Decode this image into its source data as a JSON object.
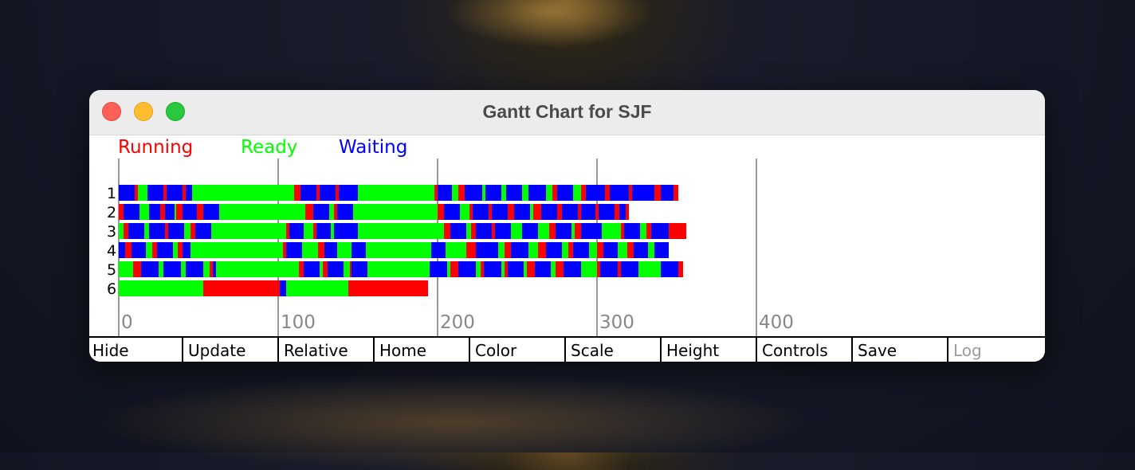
{
  "window": {
    "title": "Gantt Chart for SJF"
  },
  "legend": [
    {
      "label": "Running",
      "color": "#ff0000"
    },
    {
      "label": "Ready",
      "color": "#00ff00"
    },
    {
      "label": "Waiting",
      "color": "#0000ff"
    }
  ],
  "chart_data": {
    "type": "gantt",
    "x_ticks": [
      "0",
      "100",
      "200",
      "300",
      "400"
    ],
    "xlim": [
      0,
      400
    ],
    "rows": [
      {
        "label": "1",
        "segments": [
          [
            "W",
            0,
            10
          ],
          [
            "R",
            10,
            12
          ],
          [
            "G",
            12,
            18
          ],
          [
            "W",
            18,
            28
          ],
          [
            "R",
            28,
            30
          ],
          [
            "W",
            30,
            40
          ],
          [
            "R",
            40,
            42
          ],
          [
            "W",
            42,
            46
          ],
          [
            "G",
            46,
            56
          ],
          [
            "G",
            56,
            110
          ],
          [
            "R",
            110,
            114
          ],
          [
            "W",
            114,
            124
          ],
          [
            "R",
            124,
            126
          ],
          [
            "W",
            126,
            136
          ],
          [
            "R",
            136,
            138
          ],
          [
            "W",
            138,
            150
          ],
          [
            "G",
            150,
            198
          ],
          [
            "R",
            198,
            200
          ],
          [
            "W",
            200,
            209
          ],
          [
            "G",
            209,
            213
          ],
          [
            "R",
            213,
            217
          ],
          [
            "W",
            217,
            228
          ],
          [
            "G",
            228,
            230
          ],
          [
            "W",
            230,
            240
          ],
          [
            "G",
            240,
            243
          ],
          [
            "W",
            243,
            253
          ],
          [
            "G",
            253,
            257
          ],
          [
            "W",
            257,
            268
          ],
          [
            "G",
            268,
            272
          ],
          [
            "R",
            272,
            275
          ],
          [
            "W",
            275,
            285
          ],
          [
            "G",
            285,
            290
          ],
          [
            "R",
            290,
            293
          ],
          [
            "W",
            293,
            305
          ],
          [
            "R",
            305,
            308
          ],
          [
            "W",
            308,
            320
          ],
          [
            "R",
            320,
            322
          ],
          [
            "W",
            322,
            336
          ],
          [
            "R",
            336,
            340
          ],
          [
            "W",
            340,
            348
          ],
          [
            "R",
            348,
            351
          ]
        ]
      },
      {
        "label": "2",
        "segments": [
          [
            "R",
            0,
            3
          ],
          [
            "W",
            3,
            13
          ],
          [
            "G",
            13,
            19
          ],
          [
            "W",
            19,
            26
          ],
          [
            "R",
            26,
            29
          ],
          [
            "W",
            29,
            35
          ],
          [
            "G",
            35,
            36
          ],
          [
            "R",
            36,
            40
          ],
          [
            "W",
            40,
            49
          ],
          [
            "R",
            49,
            53
          ],
          [
            "W",
            53,
            63
          ],
          [
            "G",
            63,
            117
          ],
          [
            "R",
            117,
            122
          ],
          [
            "W",
            122,
            132
          ],
          [
            "G",
            132,
            135
          ],
          [
            "R",
            135,
            137
          ],
          [
            "W",
            137,
            147
          ],
          [
            "G",
            147,
            200
          ],
          [
            "R",
            200,
            204
          ],
          [
            "W",
            204,
            214
          ],
          [
            "G",
            214,
            220
          ],
          [
            "R",
            220,
            222
          ],
          [
            "W",
            222,
            232
          ],
          [
            "R",
            232,
            234
          ],
          [
            "W",
            234,
            244
          ],
          [
            "R",
            244,
            248
          ],
          [
            "W",
            248,
            258
          ],
          [
            "G",
            258,
            260
          ],
          [
            "R",
            260,
            265
          ],
          [
            "W",
            265,
            275
          ],
          [
            "R",
            275,
            278
          ],
          [
            "W",
            278,
            288
          ],
          [
            "R",
            288,
            290
          ],
          [
            "W",
            290,
            299
          ],
          [
            "R",
            299,
            301
          ],
          [
            "W",
            301,
            311
          ],
          [
            "R",
            311,
            314
          ],
          [
            "W",
            314,
            318
          ],
          [
            "R",
            318,
            320
          ]
        ]
      },
      {
        "label": "3",
        "segments": [
          [
            "G",
            0,
            3
          ],
          [
            "R",
            3,
            6
          ],
          [
            "W",
            6,
            16
          ],
          [
            "G",
            16,
            19
          ],
          [
            "W",
            19,
            29
          ],
          [
            "R",
            29,
            31
          ],
          [
            "W",
            31,
            41
          ],
          [
            "G",
            41,
            45
          ],
          [
            "R",
            45,
            48
          ],
          [
            "W",
            48,
            58
          ],
          [
            "G",
            58,
            105
          ],
          [
            "R",
            105,
            107
          ],
          [
            "W",
            107,
            116
          ],
          [
            "G",
            116,
            122
          ],
          [
            "R",
            122,
            124
          ],
          [
            "W",
            124,
            133
          ],
          [
            "G",
            133,
            135
          ],
          [
            "W",
            135,
            150
          ],
          [
            "G",
            150,
            204
          ],
          [
            "R",
            204,
            208
          ],
          [
            "W",
            208,
            218
          ],
          [
            "G",
            218,
            221
          ],
          [
            "R",
            221,
            224
          ],
          [
            "W",
            224,
            234
          ],
          [
            "R",
            234,
            236
          ],
          [
            "W",
            236,
            246
          ],
          [
            "G",
            246,
            253
          ],
          [
            "W",
            253,
            263
          ],
          [
            "G",
            263,
            270
          ],
          [
            "R",
            270,
            274
          ],
          [
            "W",
            274,
            284
          ],
          [
            "G",
            284,
            286
          ],
          [
            "R",
            286,
            290
          ],
          [
            "W",
            290,
            303
          ],
          [
            "G",
            303,
            315
          ],
          [
            "R",
            315,
            317
          ],
          [
            "W",
            317,
            327
          ],
          [
            "G",
            327,
            331
          ],
          [
            "R",
            331,
            334
          ],
          [
            "W",
            334,
            345
          ],
          [
            "R",
            345,
            356
          ]
        ]
      },
      {
        "label": "4",
        "segments": [
          [
            "W",
            0,
            4
          ],
          [
            "R",
            4,
            8
          ],
          [
            "W",
            8,
            17
          ],
          [
            "G",
            17,
            21
          ],
          [
            "R",
            21,
            24
          ],
          [
            "W",
            24,
            34
          ],
          [
            "G",
            34,
            37
          ],
          [
            "R",
            37,
            40
          ],
          [
            "W",
            40,
            45
          ],
          [
            "G",
            45,
            55
          ],
          [
            "G",
            55,
            103
          ],
          [
            "R",
            103,
            105
          ],
          [
            "W",
            105,
            115
          ],
          [
            "G",
            115,
            125
          ],
          [
            "R",
            125,
            129
          ],
          [
            "W",
            129,
            137
          ],
          [
            "G",
            137,
            146
          ],
          [
            "W",
            146,
            155
          ],
          [
            "G",
            155,
            196
          ],
          [
            "W",
            196,
            205
          ],
          [
            "G",
            205,
            218
          ],
          [
            "R",
            218,
            224
          ],
          [
            "W",
            224,
            238
          ],
          [
            "G",
            238,
            242
          ],
          [
            "R",
            242,
            246
          ],
          [
            "W",
            246,
            257
          ],
          [
            "G",
            257,
            263
          ],
          [
            "R",
            263,
            268
          ],
          [
            "W",
            268,
            278
          ],
          [
            "G",
            278,
            282
          ],
          [
            "R",
            282,
            285
          ],
          [
            "W",
            285,
            295
          ],
          [
            "G",
            295,
            300
          ],
          [
            "R",
            300,
            304
          ],
          [
            "W",
            304,
            313
          ],
          [
            "G",
            313,
            319
          ],
          [
            "R",
            319,
            323
          ],
          [
            "W",
            323,
            332
          ],
          [
            "G",
            332,
            336
          ],
          [
            "W",
            336,
            345
          ]
        ]
      },
      {
        "label": "5",
        "segments": [
          [
            "G",
            0,
            9
          ],
          [
            "R",
            9,
            14
          ],
          [
            "W",
            14,
            25
          ],
          [
            "G",
            25,
            28
          ],
          [
            "W",
            28,
            39
          ],
          [
            "G",
            39,
            42
          ],
          [
            "W",
            42,
            53
          ],
          [
            "G",
            53,
            57
          ],
          [
            "R",
            57,
            59
          ],
          [
            "W",
            59,
            61
          ],
          [
            "G",
            61,
            113
          ],
          [
            "R",
            113,
            116
          ],
          [
            "W",
            116,
            126
          ],
          [
            "G",
            126,
            128
          ],
          [
            "R",
            128,
            131
          ],
          [
            "W",
            131,
            141
          ],
          [
            "G",
            141,
            145
          ],
          [
            "R",
            145,
            146
          ],
          [
            "W",
            146,
            156
          ],
          [
            "G",
            156,
            195
          ],
          [
            "W",
            195,
            206
          ],
          [
            "G",
            206,
            208
          ],
          [
            "R",
            208,
            213
          ],
          [
            "W",
            213,
            224
          ],
          [
            "G",
            224,
            227
          ],
          [
            "R",
            227,
            229
          ],
          [
            "W",
            229,
            240
          ],
          [
            "G",
            240,
            242
          ],
          [
            "R",
            242,
            244
          ],
          [
            "W",
            244,
            254
          ],
          [
            "G",
            254,
            256
          ],
          [
            "R",
            256,
            261
          ],
          [
            "W",
            261,
            271
          ],
          [
            "G",
            271,
            274
          ],
          [
            "R",
            274,
            279
          ],
          [
            "W",
            279,
            290
          ],
          [
            "G",
            290,
            300
          ],
          [
            "R",
            300,
            302
          ],
          [
            "W",
            302,
            313
          ],
          [
            "R",
            313,
            315
          ],
          [
            "W",
            315,
            326
          ],
          [
            "G",
            326,
            340
          ],
          [
            "W",
            340,
            351
          ],
          [
            "R",
            351,
            354
          ]
        ]
      },
      {
        "label": "6",
        "segments": [
          [
            "G",
            0,
            53
          ],
          [
            "R",
            53,
            101
          ],
          [
            "W",
            101,
            105
          ],
          [
            "G",
            105,
            144
          ],
          [
            "R",
            144,
            194
          ]
        ]
      }
    ]
  },
  "toolbar": {
    "buttons": [
      {
        "label": "Hide",
        "enabled": true
      },
      {
        "label": "Update",
        "enabled": true
      },
      {
        "label": "Relative",
        "enabled": true
      },
      {
        "label": "Home",
        "enabled": true
      },
      {
        "label": "Color",
        "enabled": true
      },
      {
        "label": "Scale",
        "enabled": true
      },
      {
        "label": "Height",
        "enabled": true
      },
      {
        "label": "Controls",
        "enabled": true
      },
      {
        "label": "Save",
        "enabled": true
      },
      {
        "label": "Log",
        "enabled": false
      }
    ]
  },
  "colors": {
    "R": "#ff0000",
    "G": "#00ff00",
    "W": "#0000ff",
    "grid": "#777777",
    "tick": "#888888"
  }
}
